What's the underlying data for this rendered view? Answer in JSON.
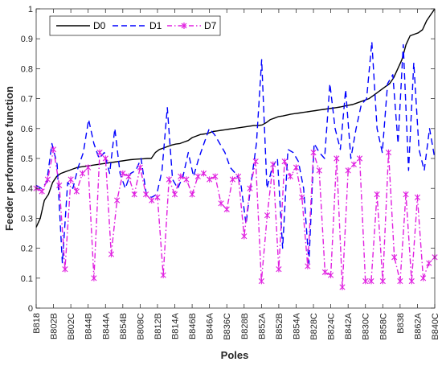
{
  "chart_data": {
    "type": "line",
    "xlabel": "Poles",
    "ylabel": "Feeder performance function",
    "ylim": [
      0,
      1
    ],
    "yticks": [
      0,
      0.1,
      0.2,
      0.3,
      0.4,
      0.5,
      0.6,
      0.7,
      0.8,
      0.9,
      1
    ],
    "ytick_labels": [
      "0",
      "0.1",
      "0.2",
      "0.3",
      "0.4",
      "0.5",
      "0.6",
      "0.7",
      "0.8",
      "0.9",
      "1"
    ],
    "x_tick_labels": [
      "B818",
      "B802B",
      "B802C",
      "B844B",
      "B844A",
      "B854B",
      "B808C",
      "B812B",
      "B814A",
      "B846B",
      "B846A",
      "B836C",
      "B828B",
      "B852A",
      "B852B",
      "B854A",
      "B828C",
      "B824C",
      "B842A",
      "B830C",
      "B858C",
      "B838",
      "B862A",
      "B840C"
    ],
    "legend_position": "top-left",
    "grid": false,
    "series": [
      {
        "name": "D0",
        "color": "#000000",
        "style": "solid",
        "values": [
          0.27,
          0.3,
          0.36,
          0.38,
          0.42,
          0.44,
          0.45,
          0.455,
          0.46,
          0.465,
          0.47,
          0.472,
          0.474,
          0.476,
          0.478,
          0.48,
          0.482,
          0.484,
          0.486,
          0.488,
          0.49,
          0.492,
          0.494,
          0.496,
          0.497,
          0.498,
          0.499,
          0.5,
          0.5,
          0.52,
          0.53,
          0.535,
          0.54,
          0.545,
          0.548,
          0.55,
          0.555,
          0.56,
          0.57,
          0.575,
          0.58,
          0.582,
          0.585,
          0.59,
          0.592,
          0.594,
          0.596,
          0.598,
          0.6,
          0.602,
          0.604,
          0.606,
          0.608,
          0.61,
          0.61,
          0.612,
          0.62,
          0.63,
          0.635,
          0.64,
          0.642,
          0.645,
          0.648,
          0.65,
          0.652,
          0.654,
          0.656,
          0.658,
          0.66,
          0.662,
          0.664,
          0.666,
          0.668,
          0.67,
          0.672,
          0.675,
          0.678,
          0.68,
          0.685,
          0.69,
          0.695,
          0.7,
          0.71,
          0.72,
          0.73,
          0.74,
          0.75,
          0.77,
          0.8,
          0.83,
          0.88,
          0.91,
          0.915,
          0.92,
          0.93,
          0.96,
          0.98,
          1.0
        ]
      },
      {
        "name": "D1",
        "color": "#0000ff",
        "style": "dashed",
        "values": [
          0.41,
          0.4,
          0.42,
          0.55,
          0.48,
          0.15,
          0.42,
          0.4,
          0.47,
          0.52,
          0.63,
          0.55,
          0.5,
          0.52,
          0.45,
          0.6,
          0.45,
          0.4,
          0.45,
          0.46,
          0.5,
          0.38,
          0.37,
          0.38,
          0.46,
          0.67,
          0.43,
          0.4,
          0.44,
          0.52,
          0.44,
          0.5,
          0.55,
          0.6,
          0.58,
          0.55,
          0.52,
          0.47,
          0.45,
          0.42,
          0.28,
          0.42,
          0.55,
          0.83,
          0.4,
          0.47,
          0.5,
          0.2,
          0.53,
          0.52,
          0.49,
          0.4,
          0.15,
          0.55,
          0.52,
          0.5,
          0.75,
          0.6,
          0.53,
          0.73,
          0.5,
          0.6,
          0.68,
          0.7,
          0.89,
          0.6,
          0.52,
          0.75,
          0.78,
          0.55,
          0.88,
          0.46,
          0.82,
          0.53,
          0.46,
          0.6,
          0.5
        ]
      },
      {
        "name": "D7",
        "color": "#e020e0",
        "style": "dashdot",
        "marker": "x",
        "values": [
          0.4,
          0.39,
          0.43,
          0.53,
          0.41,
          0.13,
          0.43,
          0.39,
          0.45,
          0.47,
          0.1,
          0.52,
          0.5,
          0.18,
          0.36,
          0.45,
          0.44,
          0.38,
          0.47,
          0.38,
          0.36,
          0.37,
          0.11,
          0.43,
          0.38,
          0.44,
          0.43,
          0.38,
          0.44,
          0.45,
          0.43,
          0.44,
          0.35,
          0.33,
          0.43,
          0.44,
          0.24,
          0.4,
          0.49,
          0.09,
          0.31,
          0.48,
          0.13,
          0.49,
          0.44,
          0.47,
          0.37,
          0.14,
          0.52,
          0.46,
          0.12,
          0.11,
          0.5,
          0.07,
          0.46,
          0.48,
          0.5,
          0.09,
          0.09,
          0.38,
          0.09,
          0.52,
          0.17,
          0.09,
          0.38,
          0.09,
          0.37,
          0.1,
          0.15,
          0.17
        ]
      }
    ]
  }
}
